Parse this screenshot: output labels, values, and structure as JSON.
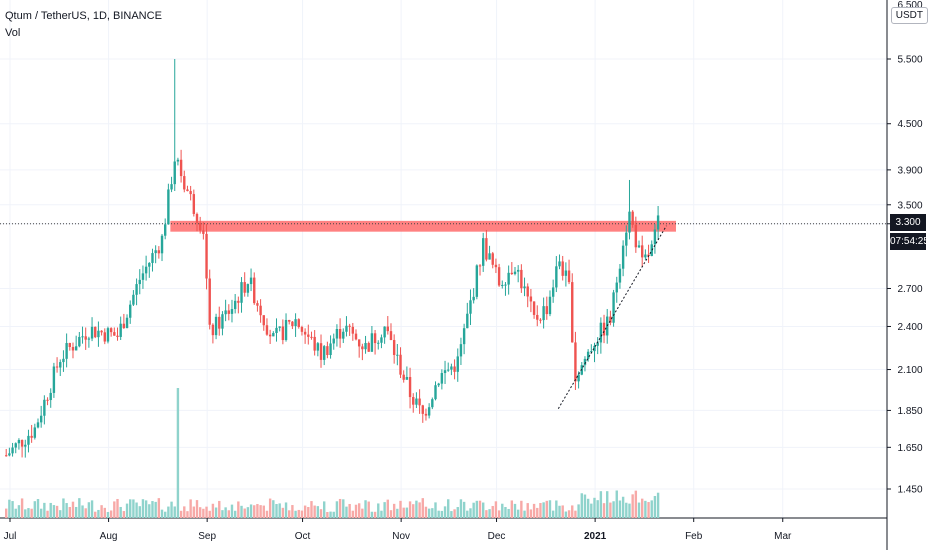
{
  "header": {
    "symbol_line": "Qtum / TetherUS, 1D, BINANCE",
    "indicator": "Vol"
  },
  "price_axis": {
    "currency": "USDT",
    "last_price": "3.300",
    "countdown": "07:54:25",
    "top_partial_label": "6.500"
  },
  "colors": {
    "up": "#26a69a",
    "down": "#ef5350",
    "up_volume": "#8fd3cc",
    "down_volume": "#f7a9a7",
    "zone": "#ff6b6b",
    "grid": "#f0f3fa",
    "axis_line": "#131722",
    "badge": "#131722"
  },
  "chart_data": {
    "type": "candlestick",
    "title": "Qtum / TetherUS, 1D, BINANCE",
    "y_scale": "log",
    "y_ticks": [
      1.45,
      1.65,
      1.85,
      2.1,
      2.4,
      2.7,
      3.3,
      3.5,
      3.9,
      4.5,
      5.5
    ],
    "y_tick_labels": [
      "1.450",
      "1.650",
      "1.850",
      "2.100",
      "2.400",
      "2.700",
      "3.300",
      "3.500",
      "3.900",
      "4.500",
      "5.500"
    ],
    "x_ticks": [
      "Jul",
      "Aug",
      "Sep",
      "Oct",
      "Nov",
      "Dec",
      "2021",
      "Feb",
      "Mar"
    ],
    "x_range": [
      "2020-07-01",
      "2021-03-10"
    ],
    "last_price_line": 3.3,
    "resistance_zone": {
      "low": 3.22,
      "high": 3.33,
      "from": "2020-08-22",
      "to": "2021-01-28"
    },
    "trendline": {
      "from": [
        "2020-12-22",
        1.86
      ],
      "to": [
        "2021-01-25",
        3.28
      ],
      "style": "dotted"
    },
    "anchor_points": [
      {
        "date": "2020-07-01",
        "close": 1.61
      },
      {
        "date": "2020-07-10",
        "close": 1.75
      },
      {
        "date": "2020-07-18",
        "close": 2.18
      },
      {
        "date": "2020-07-27",
        "close": 2.38
      },
      {
        "date": "2020-08-05",
        "close": 2.33
      },
      {
        "date": "2020-08-12",
        "close": 2.78
      },
      {
        "date": "2020-08-19",
        "close": 3.15
      },
      {
        "date": "2020-08-23",
        "close": 4.05
      },
      {
        "date": "2020-08-27",
        "close": 3.65
      },
      {
        "date": "2020-09-01",
        "close": 3.25
      },
      {
        "date": "2020-09-03",
        "close": 2.35
      },
      {
        "date": "2020-09-10",
        "close": 2.55
      },
      {
        "date": "2020-09-15",
        "close": 2.78
      },
      {
        "date": "2020-09-23",
        "close": 2.3
      },
      {
        "date": "2020-09-30",
        "close": 2.45
      },
      {
        "date": "2020-10-08",
        "close": 2.2
      },
      {
        "date": "2020-10-15",
        "close": 2.4
      },
      {
        "date": "2020-10-22",
        "close": 2.25
      },
      {
        "date": "2020-10-28",
        "close": 2.4
      },
      {
        "date": "2020-11-05",
        "close": 1.95
      },
      {
        "date": "2020-11-09",
        "close": 1.82
      },
      {
        "date": "2020-11-14",
        "close": 2.05
      },
      {
        "date": "2020-11-20",
        "close": 2.15
      },
      {
        "date": "2020-11-28",
        "close": 3.1
      },
      {
        "date": "2020-12-03",
        "close": 2.75
      },
      {
        "date": "2020-12-08",
        "close": 2.92
      },
      {
        "date": "2020-12-14",
        "close": 2.45
      },
      {
        "date": "2020-12-18",
        "close": 2.55
      },
      {
        "date": "2020-12-22",
        "close": 2.95
      },
      {
        "date": "2020-12-25",
        "close": 2.7
      },
      {
        "date": "2020-12-27",
        "close": 2.05
      },
      {
        "date": "2021-01-02",
        "close": 2.3
      },
      {
        "date": "2021-01-07",
        "close": 2.45
      },
      {
        "date": "2021-01-11",
        "close": 3.15
      },
      {
        "date": "2021-01-13",
        "close": 3.4
      },
      {
        "date": "2021-01-17",
        "close": 2.9
      },
      {
        "date": "2021-01-20",
        "close": 3.05
      },
      {
        "date": "2021-01-22",
        "close": 3.3
      }
    ],
    "volume_spike": {
      "date": "2020-08-24",
      "relative": 1.0
    }
  }
}
